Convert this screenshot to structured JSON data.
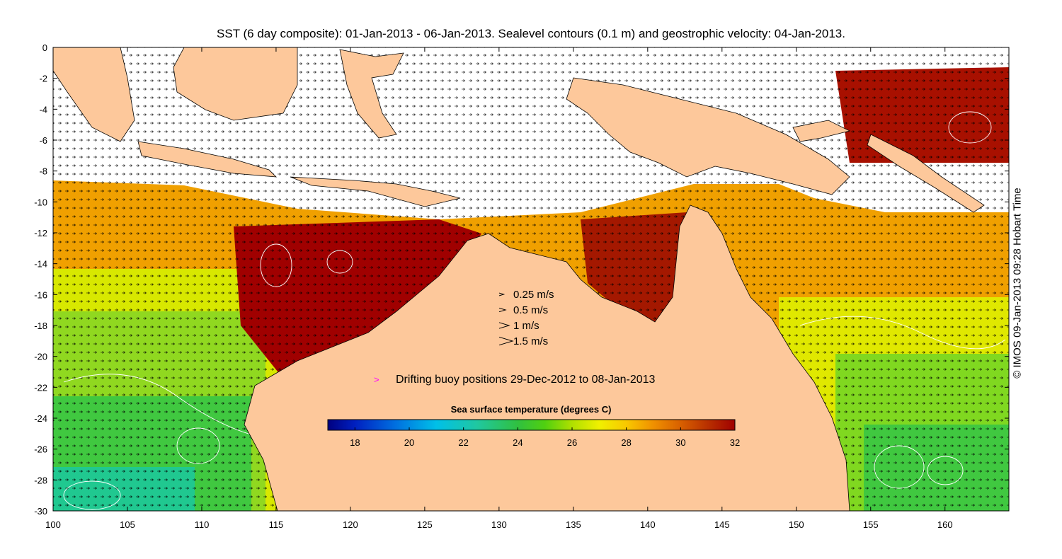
{
  "title": "SST (6 day composite): 01-Jan-2013 - 06-Jan-2013. Sealevel contours (0.1 m) and geostrophic velocity: 04-Jan-2013.",
  "credit": "© IMOS 09-Jan-2013 09:28 Hobart Time",
  "x_ticks": [
    "100",
    "105",
    "110",
    "115",
    "120",
    "125",
    "130",
    "135",
    "140",
    "145",
    "150",
    "155",
    "160"
  ],
  "y_ticks": [
    "0",
    "-2",
    "-4",
    "-6",
    "-8",
    "-10",
    "-12",
    "-14",
    "-16",
    "-18",
    "-20",
    "-22",
    "-24",
    "-26",
    "-28",
    "-30"
  ],
  "velocity_legend": [
    {
      "label": "0.25 m/s",
      "speed": 0.25
    },
    {
      "label": "0.5 m/s",
      "speed": 0.5
    },
    {
      "label": "1 m/s",
      "speed": 1
    },
    {
      "label": "1.5 m/s",
      "speed": 1.5
    }
  ],
  "buoy_legend": {
    "symbol": ">",
    "label": "Drifting buoy positions 29-Dec-2012 to 08-Jan-2013",
    "color": "#ff00ff"
  },
  "colorbar": {
    "title": "Sea surface temperature (degrees C)",
    "min": 17,
    "max": 32,
    "ticks": [
      "18",
      "20",
      "22",
      "24",
      "26",
      "28",
      "30",
      "32"
    ],
    "stops": [
      {
        "t": 17,
        "c": "#000080"
      },
      {
        "t": 18,
        "c": "#0020c0"
      },
      {
        "t": 19.5,
        "c": "#0070e0"
      },
      {
        "t": 21,
        "c": "#00c0e8"
      },
      {
        "t": 22.5,
        "c": "#20c8a0"
      },
      {
        "t": 24,
        "c": "#30c040"
      },
      {
        "t": 25,
        "c": "#50d010"
      },
      {
        "t": 26,
        "c": "#b0e000"
      },
      {
        "t": 27,
        "c": "#f0f000"
      },
      {
        "t": 28,
        "c": "#f8c800"
      },
      {
        "t": 29,
        "c": "#f09000"
      },
      {
        "t": 30,
        "c": "#d86000"
      },
      {
        "t": 31,
        "c": "#b83000"
      },
      {
        "t": 32,
        "c": "#a00000"
      }
    ]
  },
  "colors": {
    "land": "#fdc89b",
    "no_data": "#ffffff",
    "contour": "#ffffff",
    "arrow": "#000000"
  }
}
